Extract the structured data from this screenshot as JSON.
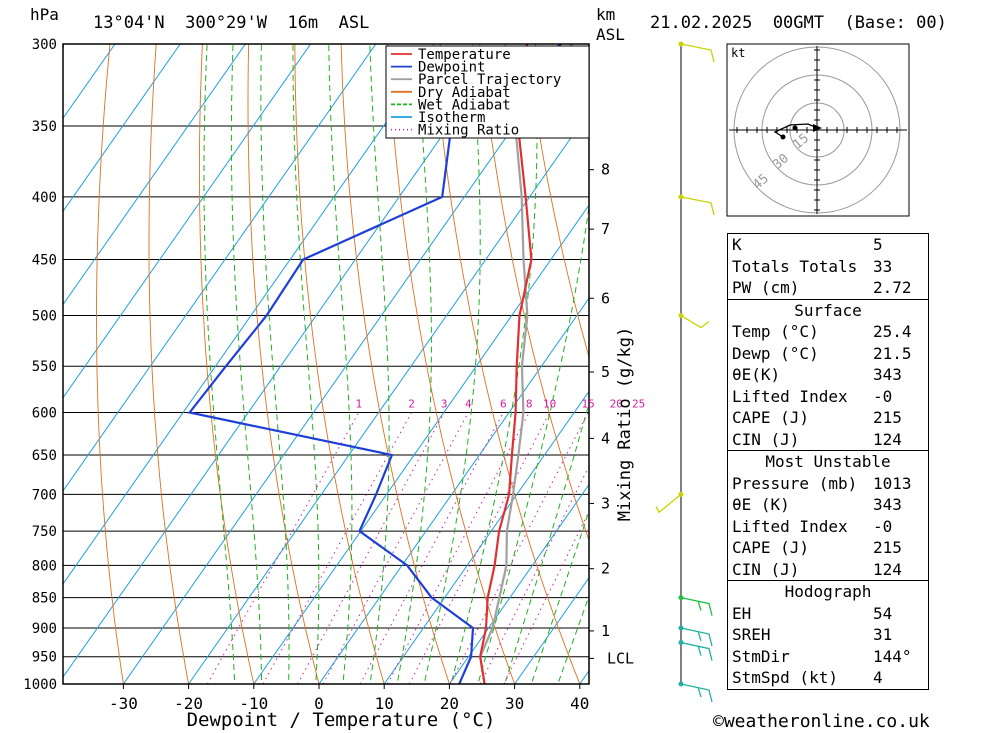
{
  "header": {
    "pressure_unit": "hPa",
    "location": "13°04'N  300°29'W  16m  ASL",
    "km_label": "km",
    "asl_label": "ASL",
    "datetime": "21.02.2025  00GMT  (Base: 00)"
  },
  "chart_data": {
    "type": "line",
    "subtype": "skew-T log-P diagram",
    "xlabel": "Dewpoint / Temperature (°C)",
    "ylabel_left": "hPa",
    "ylabel_right_inner": "Mixing Ratio (g/kg)",
    "pressure_ticks": [
      300,
      350,
      400,
      450,
      500,
      550,
      600,
      650,
      700,
      750,
      800,
      850,
      900,
      950,
      1000
    ],
    "temperature_ticks": [
      -30,
      -20,
      -10,
      0,
      10,
      20,
      30,
      40
    ],
    "height_km_ticks": [
      {
        "label": "8",
        "p": 380
      },
      {
        "label": "7",
        "p": 425
      },
      {
        "label": "6",
        "p": 484
      },
      {
        "label": "5",
        "p": 556
      },
      {
        "label": "4",
        "p": 630
      },
      {
        "label": "3",
        "p": 712
      },
      {
        "label": "2",
        "p": 805
      },
      {
        "label": "1",
        "p": 905
      },
      {
        "label": "LCL",
        "p": 953
      }
    ],
    "mixing_ratio_labels": [
      1,
      2,
      3,
      4,
      6,
      8,
      10,
      15,
      20,
      25
    ],
    "legend": {
      "placement": "top-right of plot",
      "entries": [
        {
          "name": "Temperature",
          "color": "#e03030",
          "style": "solid"
        },
        {
          "name": "Dewpoint",
          "color": "#1f3fd8",
          "style": "solid"
        },
        {
          "name": "Parcel Trajectory",
          "color": "#a0a0a0",
          "style": "solid"
        },
        {
          "name": "Dry Adiabat",
          "color": "#e07020",
          "style": "solid"
        },
        {
          "name": "Wet Adiabat",
          "color": "#20b020",
          "style": "dashed"
        },
        {
          "name": "Isotherm",
          "color": "#20a0e0",
          "style": "solid"
        },
        {
          "name": "Mixing Ratio",
          "color": "#d020a0",
          "style": "dotted"
        }
      ]
    },
    "series": [
      {
        "name": "Temperature",
        "points": [
          {
            "p": 1000,
            "t": 25.4
          },
          {
            "p": 950,
            "t": 21.8
          },
          {
            "p": 900,
            "t": 19.6
          },
          {
            "p": 850,
            "t": 16.6
          },
          {
            "p": 800,
            "t": 14.2
          },
          {
            "p": 750,
            "t": 11.2
          },
          {
            "p": 700,
            "t": 8.8
          },
          {
            "p": 650,
            "t": 5.0
          },
          {
            "p": 600,
            "t": 1.0
          },
          {
            "p": 550,
            "t": -3.8
          },
          {
            "p": 500,
            "t": -8.8
          },
          {
            "p": 450,
            "t": -13.0
          },
          {
            "p": 400,
            "t": -20.6
          },
          {
            "p": 350,
            "t": -29.4
          },
          {
            "p": 300,
            "t": -36.8
          }
        ]
      },
      {
        "name": "Dewpoint",
        "points": [
          {
            "p": 1000,
            "t": 21.5
          },
          {
            "p": 950,
            "t": 20.4
          },
          {
            "p": 900,
            "t": 17.6
          },
          {
            "p": 850,
            "t": 8.0
          },
          {
            "p": 800,
            "t": 0.8
          },
          {
            "p": 750,
            "t": -10.2
          },
          {
            "p": 700,
            "t": -11.6
          },
          {
            "p": 650,
            "t": -13.4
          },
          {
            "p": 600,
            "t": -49.0
          },
          {
            "p": 550,
            "t": -48.4
          },
          {
            "p": 500,
            "t": -47.6
          },
          {
            "p": 450,
            "t": -48.0
          },
          {
            "p": 400,
            "t": -33.4
          },
          {
            "p": 350,
            "t": -39.6
          },
          {
            "p": 300,
            "t": -31.6
          }
        ]
      },
      {
        "name": "Parcel Trajectory",
        "points": [
          {
            "p": 1000,
            "t": 25.4
          },
          {
            "p": 950,
            "t": 21.8
          },
          {
            "p": 900,
            "t": 20.6
          },
          {
            "p": 850,
            "t": 18.4
          },
          {
            "p": 800,
            "t": 16.0
          },
          {
            "p": 750,
            "t": 12.4
          },
          {
            "p": 700,
            "t": 9.4
          },
          {
            "p": 650,
            "t": 6.0
          },
          {
            "p": 600,
            "t": 2.2
          },
          {
            "p": 550,
            "t": -3.0
          },
          {
            "p": 500,
            "t": -7.6
          },
          {
            "p": 450,
            "t": -14.2
          },
          {
            "p": 400,
            "t": -21.2
          },
          {
            "p": 350,
            "t": -29.8
          }
        ]
      }
    ],
    "wind_barbs": [
      {
        "p": 300,
        "color": "#c8d400"
      },
      {
        "p": 400,
        "color": "#c8d400"
      },
      {
        "p": 500,
        "color": "#c8d400"
      },
      {
        "p": 700,
        "color": "#c8d400"
      },
      {
        "p": 850,
        "color": "#20c040"
      },
      {
        "p": 900,
        "color": "#20b0a0"
      },
      {
        "p": 925,
        "color": "#20b0a0"
      },
      {
        "p": 1000,
        "color": "#20b0a0"
      }
    ],
    "hodograph": {
      "unit_label": "kt",
      "ring_labels": [
        "15",
        "30",
        "45"
      ]
    }
  },
  "indices": {
    "top": [
      {
        "k": "K",
        "v": "5"
      },
      {
        "k": "Totals Totals",
        "v": "33"
      },
      {
        "k": "PW (cm)",
        "v": "2.72"
      }
    ],
    "surface": {
      "title": "Surface",
      "rows": [
        {
          "k": "Temp (°C)",
          "v": "25.4"
        },
        {
          "k": "Dewp (°C)",
          "v": "21.5"
        },
        {
          "k": "θE(K)",
          "v": "343"
        },
        {
          "k": "Lifted Index",
          "v": "-0"
        },
        {
          "k": "CAPE (J)",
          "v": "215"
        },
        {
          "k": "CIN (J)",
          "v": "124"
        }
      ]
    },
    "most_unstable": {
      "title": "Most Unstable",
      "rows": [
        {
          "k": "Pressure (mb)",
          "v": "1013"
        },
        {
          "k": "θE (K)",
          "v": "343"
        },
        {
          "k": "Lifted Index",
          "v": "-0"
        },
        {
          "k": "CAPE (J)",
          "v": "215"
        },
        {
          "k": "CIN (J)",
          "v": "124"
        }
      ]
    },
    "hodograph_box": {
      "title": "Hodograph",
      "rows": [
        {
          "k": "EH",
          "v": "54"
        },
        {
          "k": "SREH",
          "v": "31"
        },
        {
          "k": "StmDir",
          "v": "144°"
        },
        {
          "k": "StmSpd (kt)",
          "v": "4"
        }
      ]
    }
  },
  "footer": {
    "copyright": "©weatheronline.co.uk"
  }
}
